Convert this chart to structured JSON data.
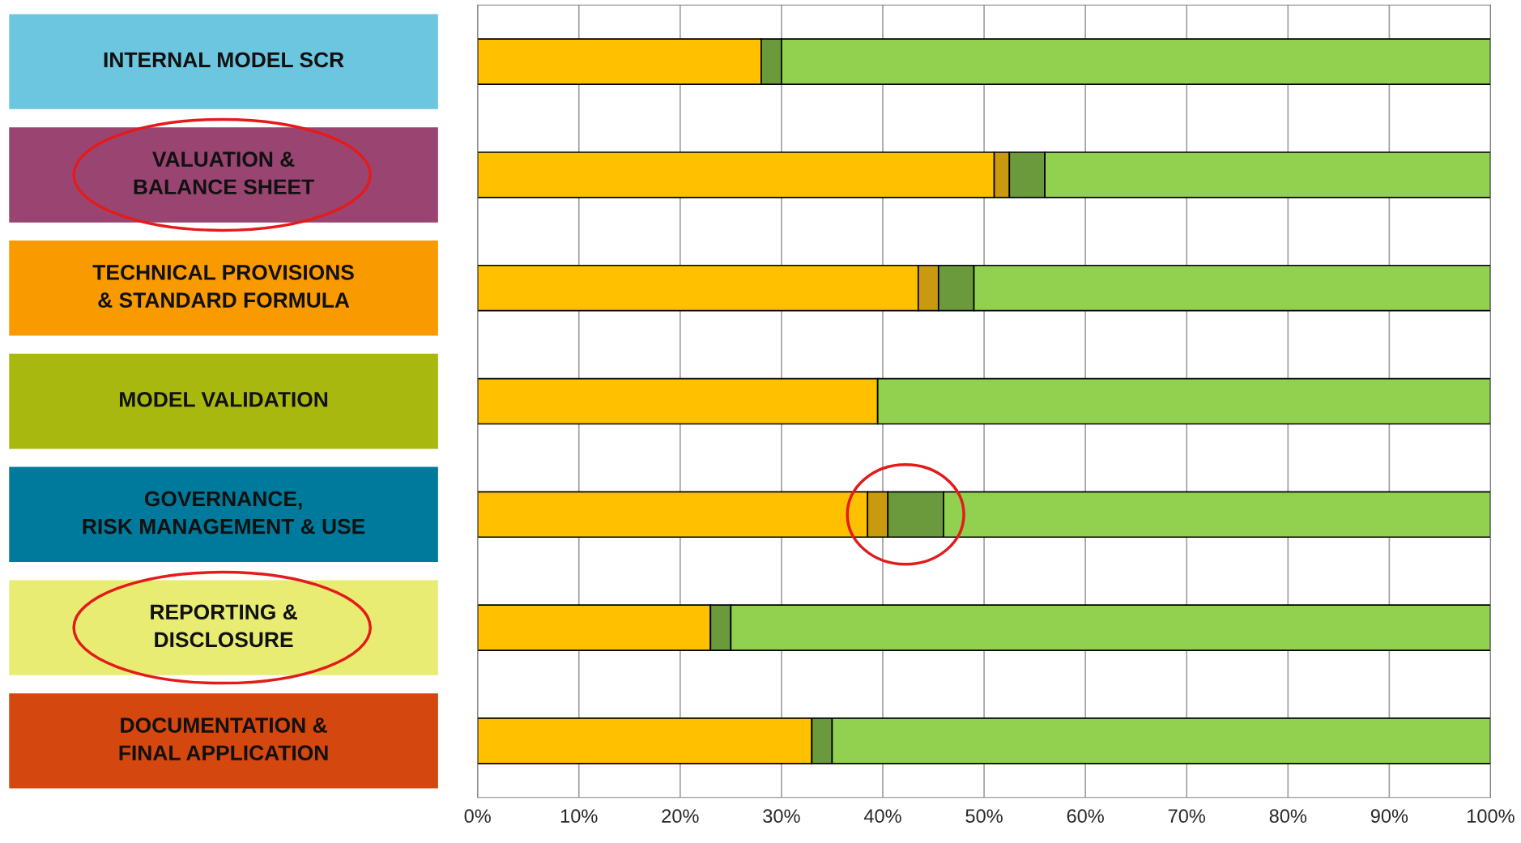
{
  "chart_data": {
    "type": "bar",
    "orientation": "horizontal",
    "stacked": true,
    "categories": [
      "INTERNAL MODEL SCR",
      "VALUATION &\nBALANCE SHEET",
      "TECHNICAL PROVISIONS\n& STANDARD FORMULA",
      "MODEL VALIDATION",
      "GOVERNANCE,\nRISK MANAGEMENT & USE",
      "REPORTING &\nDISCLOSURE",
      "DOCUMENTATION &\nFINAL APPLICATION"
    ],
    "series": [
      {
        "color": "#ffc000",
        "values": [
          28,
          51,
          43.5,
          39.5,
          38.5,
          23,
          33
        ]
      },
      {
        "color": "#c99a10",
        "values": [
          0,
          1.5,
          2,
          0,
          2,
          0,
          0
        ]
      },
      {
        "color": "#6a9a3c",
        "values": [
          2,
          3.5,
          3.5,
          0,
          5.5,
          2,
          2
        ]
      },
      {
        "color": "#92d050",
        "values": [
          70,
          44,
          51,
          60.5,
          54,
          75,
          65
        ]
      }
    ],
    "xlim": [
      0,
      100
    ],
    "xticks": [
      {
        "value": 0,
        "label": "0%"
      },
      {
        "value": 10,
        "label": "10%"
      },
      {
        "value": 20,
        "label": "20%"
      },
      {
        "value": 30,
        "label": "30%"
      },
      {
        "value": 40,
        "label": "40%"
      },
      {
        "value": 50,
        "label": "50%"
      },
      {
        "value": 60,
        "label": "60%"
      },
      {
        "value": 70,
        "label": "70%"
      },
      {
        "value": 80,
        "label": "80%"
      },
      {
        "value": 90,
        "label": "90%"
      },
      {
        "value": 100,
        "label": "100%"
      }
    ],
    "grid": "x",
    "legend": false
  }
}
